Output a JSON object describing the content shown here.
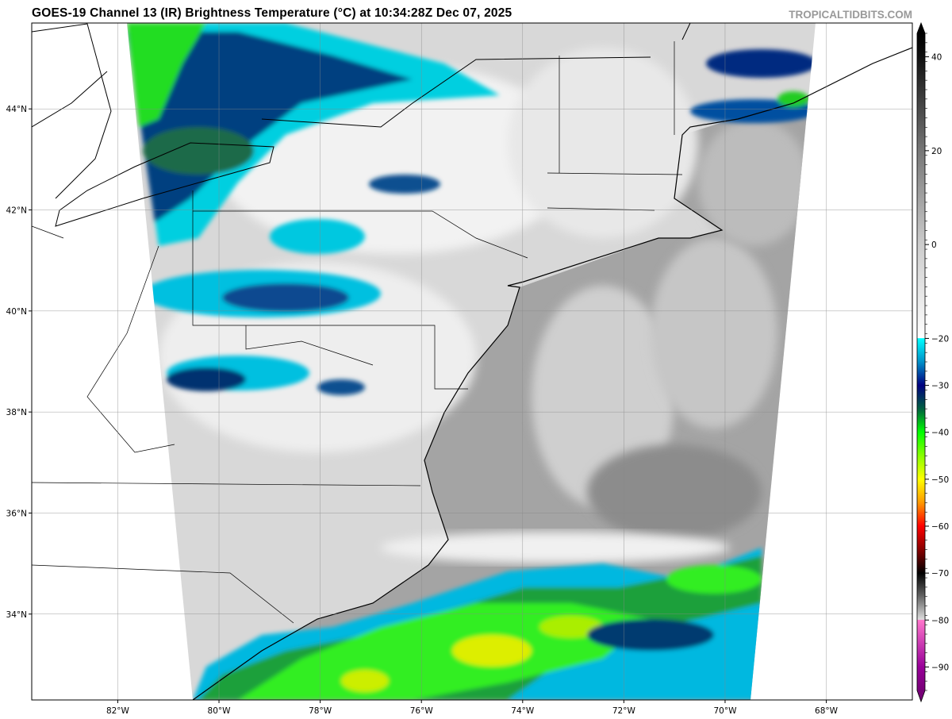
{
  "title": "GOES-19 Channel 13 (IR) Brightness Temperature (°C) at 10:34:28Z Dec 07, 2025",
  "watermark": "TROPICALTIDBITS.COM",
  "map": {
    "lon_range": [
      -83.7,
      -66.3
    ],
    "lat_range": [
      32.3,
      45.7
    ],
    "lon_ticks": [
      {
        "value": -82,
        "label": "82°W"
      },
      {
        "value": -80,
        "label": "80°W"
      },
      {
        "value": -78,
        "label": "78°W"
      },
      {
        "value": -76,
        "label": "76°W"
      },
      {
        "value": -74,
        "label": "74°W"
      },
      {
        "value": -72,
        "label": "72°W"
      },
      {
        "value": -70,
        "label": "70°W"
      },
      {
        "value": -68,
        "label": "68°W"
      }
    ],
    "lat_ticks": [
      {
        "value": 44,
        "label": "44°N"
      },
      {
        "value": 42,
        "label": "42°N"
      },
      {
        "value": 40,
        "label": "40°N"
      },
      {
        "value": 38,
        "label": "38°N"
      },
      {
        "value": 36,
        "label": "36°N"
      },
      {
        "value": 34,
        "label": "34°N"
      }
    ],
    "grid": true
  },
  "colorbar": {
    "range": [
      -95,
      45
    ],
    "extend": "both",
    "ticks": [
      {
        "value": 40,
        "label": "40"
      },
      {
        "value": 20,
        "label": "20"
      },
      {
        "value": 0,
        "label": "0"
      },
      {
        "value": -20,
        "label": "−20"
      },
      {
        "value": -30,
        "label": "−30"
      },
      {
        "value": -40,
        "label": "−40"
      },
      {
        "value": -50,
        "label": "−50"
      },
      {
        "value": -60,
        "label": "−60"
      },
      {
        "value": -70,
        "label": "−70"
      },
      {
        "value": -80,
        "label": "−80"
      },
      {
        "value": -90,
        "label": "−90"
      }
    ],
    "stops": [
      {
        "t": 45,
        "color": "#000000"
      },
      {
        "t": 40,
        "color": "#111111"
      },
      {
        "t": 20,
        "color": "#777777"
      },
      {
        "t": 0,
        "color": "#cccccc"
      },
      {
        "t": -19.9,
        "color": "#ffffff"
      },
      {
        "t": -20,
        "color": "#00ffff"
      },
      {
        "t": -25,
        "color": "#0090c8"
      },
      {
        "t": -30,
        "color": "#000080"
      },
      {
        "t": -35,
        "color": "#006040"
      },
      {
        "t": -40,
        "color": "#00ff00"
      },
      {
        "t": -45,
        "color": "#88ff00"
      },
      {
        "t": -50,
        "color": "#ffff00"
      },
      {
        "t": -55,
        "color": "#ff9900"
      },
      {
        "t": -60,
        "color": "#ff0000"
      },
      {
        "t": -65,
        "color": "#880000"
      },
      {
        "t": -70,
        "color": "#000000"
      },
      {
        "t": -75,
        "color": "#666666"
      },
      {
        "t": -79.9,
        "color": "#dddddd"
      },
      {
        "t": -80,
        "color": "#ff77cc"
      },
      {
        "t": -90,
        "color": "#990099"
      },
      {
        "t": -95,
        "color": "#770077"
      }
    ]
  }
}
